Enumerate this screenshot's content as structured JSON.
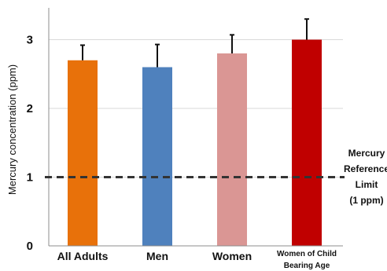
{
  "chart_data": {
    "type": "bar",
    "title": "",
    "xlabel": "",
    "ylabel": "Mercury concentration (ppm)",
    "ylim": [
      0,
      3.5
    ],
    "yticks": [
      "0",
      "1",
      "2",
      "3"
    ],
    "grid": true,
    "categories": [
      {
        "lines": [
          "All Adults"
        ]
      },
      {
        "lines": [
          "Men"
        ]
      },
      {
        "lines": [
          "Women"
        ]
      },
      {
        "lines": [
          "Women of Child",
          "Bearing Age"
        ]
      }
    ],
    "values": [
      2.7,
      2.6,
      2.8,
      3.0
    ],
    "error_upper": [
      0.22,
      0.33,
      0.27,
      0.3
    ],
    "colors": [
      "#e8710a",
      "#4f81bd",
      "#da9694",
      "#c00000"
    ],
    "reference_line": {
      "value": 1,
      "style": "dashed",
      "label_lines": [
        "Mercury",
        "Reference",
        "Limit",
        "(1 ppm)"
      ]
    }
  }
}
